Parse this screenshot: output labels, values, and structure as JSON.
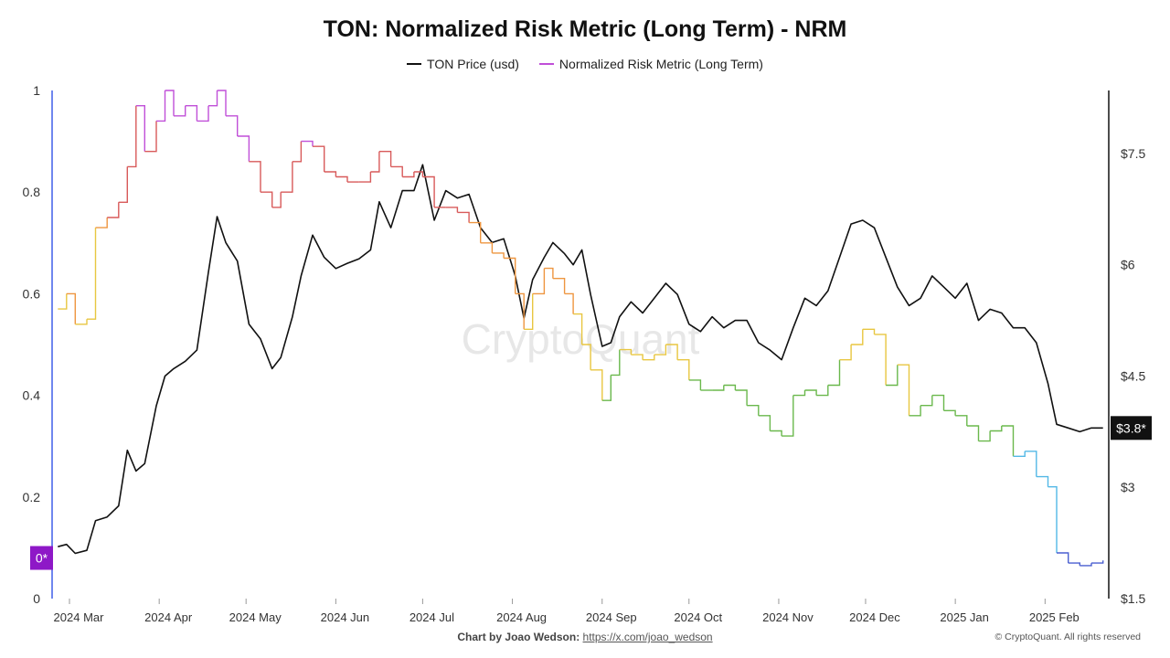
{
  "header": {
    "title": "TON: Normalized Risk Metric (Long Term) - NRM"
  },
  "legend": [
    {
      "label": "TON Price (usd)",
      "color": "#111111"
    },
    {
      "label": "Normalized Risk Metric (Long Term)",
      "color": "#c04fd8"
    }
  ],
  "footer": {
    "credit_label": "Chart by Joao Wedson:",
    "credit_link": "https://x.com/joao_wedson",
    "copyright": "© CryptoQuant. All rights reserved"
  },
  "watermark": "CryptoQuant",
  "chart_data": {
    "type": "line",
    "x_range": [
      "2024-02-24",
      "2025-02-23"
    ],
    "x_ticks": [
      {
        "date": "2024-03-01",
        "label": "2024 Mar"
      },
      {
        "date": "2024-04-01",
        "label": "2024 Apr"
      },
      {
        "date": "2024-05-01",
        "label": "2024 May"
      },
      {
        "date": "2024-06-01",
        "label": "2024 Jun"
      },
      {
        "date": "2024-07-01",
        "label": "2024 Jul"
      },
      {
        "date": "2024-08-01",
        "label": "2024 Aug"
      },
      {
        "date": "2024-09-01",
        "label": "2024 Sep"
      },
      {
        "date": "2024-10-01",
        "label": "2024 Oct"
      },
      {
        "date": "2024-11-01",
        "label": "2024 Nov"
      },
      {
        "date": "2024-12-01",
        "label": "2024 Dec"
      },
      {
        "date": "2025-01-01",
        "label": "2025 Jan"
      },
      {
        "date": "2025-02-01",
        "label": "2025 Feb"
      }
    ],
    "y_left": {
      "min": 0,
      "max": 1,
      "ticks": [
        {
          "value": 0,
          "label": "0"
        },
        {
          "value": 0.2,
          "label": "0.2"
        },
        {
          "value": 0.4,
          "label": "0.4"
        },
        {
          "value": 0.6,
          "label": "0.6"
        },
        {
          "value": 0.8,
          "label": "0.8"
        },
        {
          "value": 1,
          "label": "1"
        }
      ]
    },
    "y_right": {
      "min": 1.5,
      "max": 8.35,
      "ticks": [
        {
          "value": 1.5,
          "label": "$1.5"
        },
        {
          "value": 3,
          "label": "$3"
        },
        {
          "value": 4.5,
          "label": "$4.5"
        },
        {
          "value": 6,
          "label": "$6"
        },
        {
          "value": 7.5,
          "label": "$7.5"
        }
      ]
    },
    "badges": {
      "left": {
        "label": "0*",
        "value": 0.08,
        "color": "#8e18c7"
      },
      "right": {
        "label": "$3.8*",
        "value": 3.8,
        "color": "#111111"
      }
    },
    "risk_color_stops": [
      {
        "value": 0.0,
        "color": "#4a5fd0"
      },
      {
        "value": 0.15,
        "color": "#53b8e6"
      },
      {
        "value": 0.3,
        "color": "#6ab84c"
      },
      {
        "value": 0.45,
        "color": "#e8c640"
      },
      {
        "value": 0.58,
        "color": "#ee9640"
      },
      {
        "value": 0.75,
        "color": "#d85a5a"
      },
      {
        "value": 0.9,
        "color": "#c04fd8"
      }
    ],
    "series": [
      {
        "name": "TON Price (usd)",
        "axis": "right",
        "color": "#111111",
        "points": [
          [
            "2024-02-26",
            2.2
          ],
          [
            "2024-02-29",
            2.23
          ],
          [
            "2024-03-03",
            2.11
          ],
          [
            "2024-03-07",
            2.15
          ],
          [
            "2024-03-10",
            2.55
          ],
          [
            "2024-03-14",
            2.6
          ],
          [
            "2024-03-18",
            2.75
          ],
          [
            "2024-03-21",
            3.5
          ],
          [
            "2024-03-24",
            3.22
          ],
          [
            "2024-03-27",
            3.32
          ],
          [
            "2024-03-31",
            4.1
          ],
          [
            "2024-04-03",
            4.5
          ],
          [
            "2024-04-06",
            4.6
          ],
          [
            "2024-04-10",
            4.7
          ],
          [
            "2024-04-14",
            4.85
          ],
          [
            "2024-04-18",
            5.9
          ],
          [
            "2024-04-21",
            6.65
          ],
          [
            "2024-04-24",
            6.3
          ],
          [
            "2024-04-28",
            6.05
          ],
          [
            "2024-05-02",
            5.2
          ],
          [
            "2024-05-06",
            5.0
          ],
          [
            "2024-05-10",
            4.6
          ],
          [
            "2024-05-13",
            4.75
          ],
          [
            "2024-05-17",
            5.3
          ],
          [
            "2024-05-20",
            5.85
          ],
          [
            "2024-05-24",
            6.4
          ],
          [
            "2024-05-28",
            6.1
          ],
          [
            "2024-06-01",
            5.95
          ],
          [
            "2024-06-05",
            6.02
          ],
          [
            "2024-06-09",
            6.08
          ],
          [
            "2024-06-13",
            6.2
          ],
          [
            "2024-06-16",
            6.85
          ],
          [
            "2024-06-20",
            6.5
          ],
          [
            "2024-06-24",
            7.0
          ],
          [
            "2024-06-28",
            7.0
          ],
          [
            "2024-07-01",
            7.35
          ],
          [
            "2024-07-05",
            6.6
          ],
          [
            "2024-07-09",
            7.0
          ],
          [
            "2024-07-13",
            6.9
          ],
          [
            "2024-07-17",
            6.95
          ],
          [
            "2024-07-21",
            6.5
          ],
          [
            "2024-07-25",
            6.3
          ],
          [
            "2024-07-29",
            6.35
          ],
          [
            "2024-08-02",
            5.85
          ],
          [
            "2024-08-05",
            5.28
          ],
          [
            "2024-08-08",
            5.8
          ],
          [
            "2024-08-12",
            6.1
          ],
          [
            "2024-08-15",
            6.3
          ],
          [
            "2024-08-19",
            6.15
          ],
          [
            "2024-08-22",
            6.0
          ],
          [
            "2024-08-25",
            6.2
          ],
          [
            "2024-08-28",
            5.6
          ],
          [
            "2024-09-01",
            4.9
          ],
          [
            "2024-09-04",
            4.95
          ],
          [
            "2024-09-07",
            5.3
          ],
          [
            "2024-09-11",
            5.5
          ],
          [
            "2024-09-15",
            5.35
          ],
          [
            "2024-09-19",
            5.55
          ],
          [
            "2024-09-23",
            5.75
          ],
          [
            "2024-09-27",
            5.6
          ],
          [
            "2024-10-01",
            5.2
          ],
          [
            "2024-10-05",
            5.1
          ],
          [
            "2024-10-09",
            5.3
          ],
          [
            "2024-10-13",
            5.15
          ],
          [
            "2024-10-17",
            5.25
          ],
          [
            "2024-10-21",
            5.25
          ],
          [
            "2024-10-25",
            4.95
          ],
          [
            "2024-10-29",
            4.85
          ],
          [
            "2024-11-02",
            4.72
          ],
          [
            "2024-11-06",
            5.15
          ],
          [
            "2024-11-10",
            5.55
          ],
          [
            "2024-11-14",
            5.45
          ],
          [
            "2024-11-18",
            5.65
          ],
          [
            "2024-11-22",
            6.1
          ],
          [
            "2024-11-26",
            6.55
          ],
          [
            "2024-11-30",
            6.6
          ],
          [
            "2024-12-04",
            6.5
          ],
          [
            "2024-12-08",
            6.1
          ],
          [
            "2024-12-12",
            5.7
          ],
          [
            "2024-12-16",
            5.45
          ],
          [
            "2024-12-20",
            5.55
          ],
          [
            "2024-12-24",
            5.85
          ],
          [
            "2024-12-28",
            5.7
          ],
          [
            "2025-01-01",
            5.55
          ],
          [
            "2025-01-05",
            5.75
          ],
          [
            "2025-01-09",
            5.25
          ],
          [
            "2025-01-13",
            5.4
          ],
          [
            "2025-01-17",
            5.35
          ],
          [
            "2025-01-21",
            5.15
          ],
          [
            "2025-01-25",
            5.15
          ],
          [
            "2025-01-29",
            4.95
          ],
          [
            "2025-02-02",
            4.4
          ],
          [
            "2025-02-05",
            3.85
          ],
          [
            "2025-02-09",
            3.8
          ],
          [
            "2025-02-13",
            3.75
          ],
          [
            "2025-02-17",
            3.8
          ],
          [
            "2025-02-21",
            3.8
          ]
        ]
      },
      {
        "name": "Normalized Risk Metric (Long Term)",
        "axis": "left",
        "color": "#c04fd8",
        "points": [
          [
            "2024-02-26",
            0.57
          ],
          [
            "2024-02-29",
            0.6
          ],
          [
            "2024-03-03",
            0.54
          ],
          [
            "2024-03-07",
            0.55
          ],
          [
            "2024-03-10",
            0.73
          ],
          [
            "2024-03-14",
            0.75
          ],
          [
            "2024-03-18",
            0.78
          ],
          [
            "2024-03-21",
            0.85
          ],
          [
            "2024-03-24",
            0.97
          ],
          [
            "2024-03-27",
            0.88
          ],
          [
            "2024-03-31",
            0.94
          ],
          [
            "2024-04-03",
            1.0
          ],
          [
            "2024-04-06",
            0.95
          ],
          [
            "2024-04-10",
            0.97
          ],
          [
            "2024-04-14",
            0.94
          ],
          [
            "2024-04-18",
            0.97
          ],
          [
            "2024-04-21",
            1.0
          ],
          [
            "2024-04-24",
            0.95
          ],
          [
            "2024-04-28",
            0.91
          ],
          [
            "2024-05-02",
            0.86
          ],
          [
            "2024-05-06",
            0.8
          ],
          [
            "2024-05-10",
            0.77
          ],
          [
            "2024-05-13",
            0.8
          ],
          [
            "2024-05-17",
            0.86
          ],
          [
            "2024-05-20",
            0.9
          ],
          [
            "2024-05-24",
            0.89
          ],
          [
            "2024-05-28",
            0.84
          ],
          [
            "2024-06-01",
            0.83
          ],
          [
            "2024-06-05",
            0.82
          ],
          [
            "2024-06-09",
            0.82
          ],
          [
            "2024-06-13",
            0.84
          ],
          [
            "2024-06-16",
            0.88
          ],
          [
            "2024-06-20",
            0.85
          ],
          [
            "2024-06-24",
            0.83
          ],
          [
            "2024-06-28",
            0.84
          ],
          [
            "2024-07-01",
            0.83
          ],
          [
            "2024-07-05",
            0.77
          ],
          [
            "2024-07-09",
            0.77
          ],
          [
            "2024-07-13",
            0.76
          ],
          [
            "2024-07-17",
            0.74
          ],
          [
            "2024-07-21",
            0.7
          ],
          [
            "2024-07-25",
            0.68
          ],
          [
            "2024-07-29",
            0.67
          ],
          [
            "2024-08-02",
            0.6
          ],
          [
            "2024-08-05",
            0.53
          ],
          [
            "2024-08-08",
            0.6
          ],
          [
            "2024-08-12",
            0.65
          ],
          [
            "2024-08-15",
            0.63
          ],
          [
            "2024-08-19",
            0.6
          ],
          [
            "2024-08-22",
            0.56
          ],
          [
            "2024-08-25",
            0.5
          ],
          [
            "2024-08-28",
            0.45
          ],
          [
            "2024-09-01",
            0.39
          ],
          [
            "2024-09-04",
            0.44
          ],
          [
            "2024-09-07",
            0.49
          ],
          [
            "2024-09-11",
            0.48
          ],
          [
            "2024-09-15",
            0.47
          ],
          [
            "2024-09-19",
            0.48
          ],
          [
            "2024-09-23",
            0.5
          ],
          [
            "2024-09-27",
            0.47
          ],
          [
            "2024-10-01",
            0.43
          ],
          [
            "2024-10-05",
            0.41
          ],
          [
            "2024-10-09",
            0.41
          ],
          [
            "2024-10-13",
            0.42
          ],
          [
            "2024-10-17",
            0.41
          ],
          [
            "2024-10-21",
            0.38
          ],
          [
            "2024-10-25",
            0.36
          ],
          [
            "2024-10-29",
            0.33
          ],
          [
            "2024-11-02",
            0.32
          ],
          [
            "2024-11-06",
            0.4
          ],
          [
            "2024-11-10",
            0.41
          ],
          [
            "2024-11-14",
            0.4
          ],
          [
            "2024-11-18",
            0.42
          ],
          [
            "2024-11-22",
            0.47
          ],
          [
            "2024-11-26",
            0.5
          ],
          [
            "2024-11-30",
            0.53
          ],
          [
            "2024-12-04",
            0.52
          ],
          [
            "2024-12-08",
            0.42
          ],
          [
            "2024-12-12",
            0.46
          ],
          [
            "2024-12-16",
            0.36
          ],
          [
            "2024-12-20",
            0.38
          ],
          [
            "2024-12-24",
            0.4
          ],
          [
            "2024-12-28",
            0.37
          ],
          [
            "2025-01-01",
            0.36
          ],
          [
            "2025-01-05",
            0.34
          ],
          [
            "2025-01-09",
            0.31
          ],
          [
            "2025-01-13",
            0.33
          ],
          [
            "2025-01-17",
            0.34
          ],
          [
            "2025-01-21",
            0.28
          ],
          [
            "2025-01-25",
            0.29
          ],
          [
            "2025-01-29",
            0.24
          ],
          [
            "2025-02-02",
            0.22
          ],
          [
            "2025-02-05",
            0.09
          ],
          [
            "2025-02-09",
            0.07
          ],
          [
            "2025-02-13",
            0.065
          ],
          [
            "2025-02-17",
            0.07
          ],
          [
            "2025-02-21",
            0.075
          ]
        ]
      }
    ]
  }
}
